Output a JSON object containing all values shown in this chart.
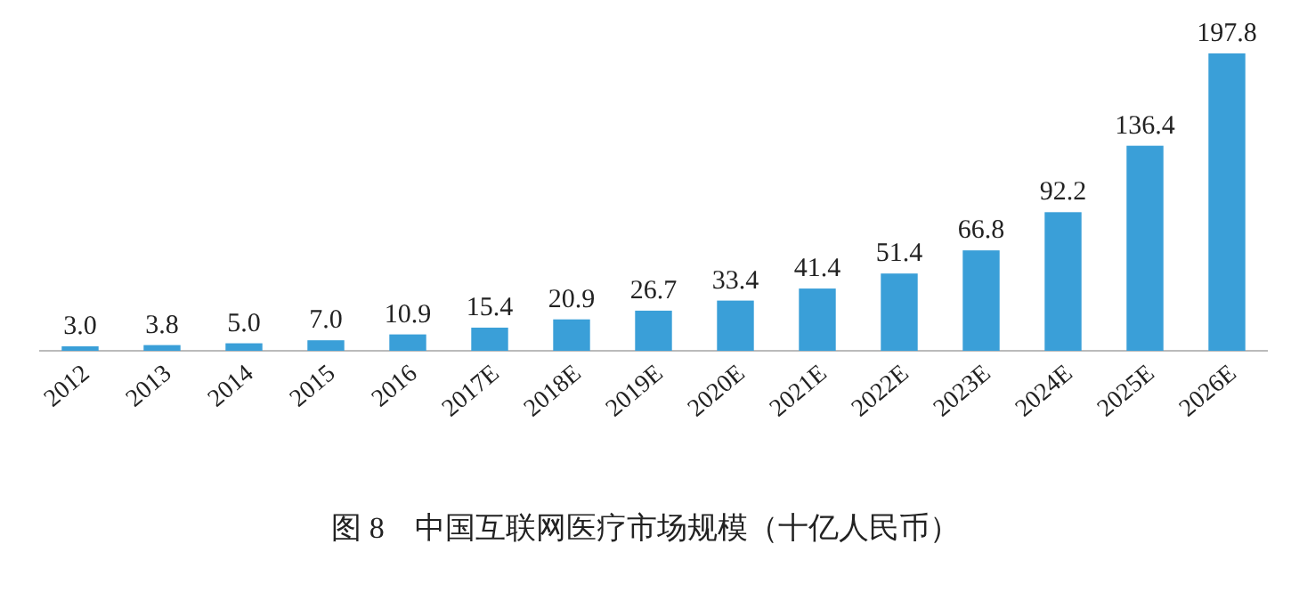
{
  "chart_data": {
    "type": "bar",
    "title": "图 8　中国互联网医疗市场规模（十亿人民币）",
    "categories": [
      "2012",
      "2013",
      "2014",
      "2015",
      "2016",
      "2017E",
      "2018E",
      "2019E",
      "2020E",
      "2021E",
      "2022E",
      "2023E",
      "2024E",
      "2025E",
      "2026E"
    ],
    "values": [
      3.0,
      3.8,
      5.0,
      7.0,
      10.9,
      15.4,
      20.9,
      26.7,
      33.4,
      41.4,
      51.4,
      66.8,
      92.2,
      136.4,
      197.8
    ],
    "value_labels": [
      "3.0",
      "3.8",
      "5.0",
      "7.0",
      "10.9",
      "15.4",
      "20.9",
      "26.7",
      "33.4",
      "41.4",
      "51.4",
      "66.8",
      "92.2",
      "136.4",
      "197.8"
    ],
    "color": "#3a9fd8"
  }
}
